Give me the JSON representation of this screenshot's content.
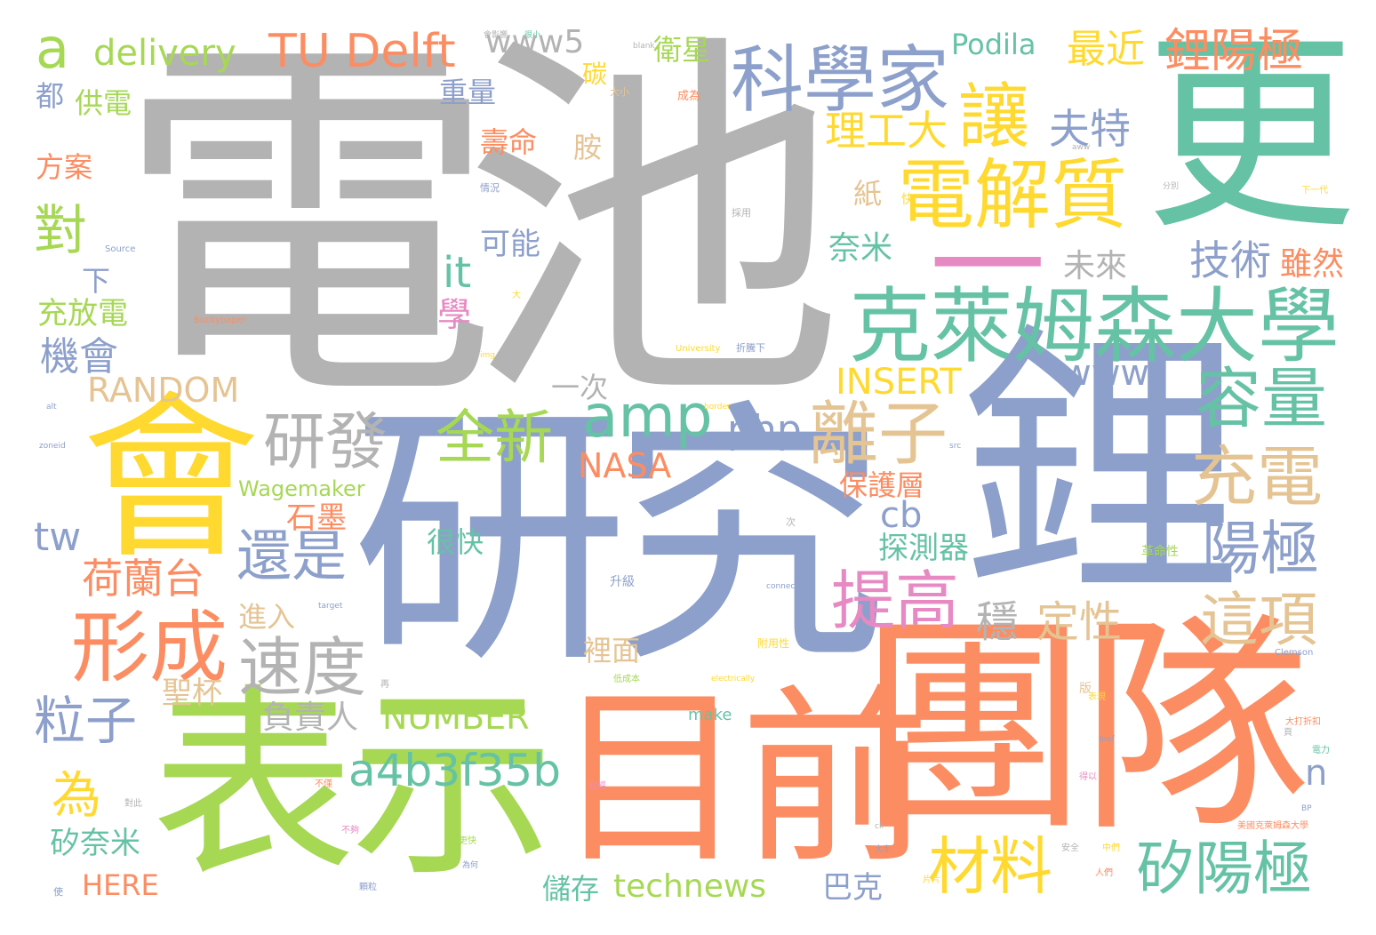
{
  "palette": {
    "gray": "#b3b3b3",
    "blue": "#8da0cb",
    "orange": "#fc8d62",
    "green": "#66c2a5",
    "lime": "#a6d854",
    "yellow": "#ffd92f",
    "tan": "#e5c494",
    "pink": "#e78ac3"
  },
  "words": [
    {
      "text": "電池",
      "color": "gray"
    },
    {
      "text": "更",
      "color": "green"
    },
    {
      "text": "鋰",
      "color": "blue"
    },
    {
      "text": "研究",
      "color": "blue"
    },
    {
      "text": "團隊",
      "color": "orange"
    },
    {
      "text": "目前",
      "color": "orange"
    },
    {
      "text": "表示",
      "color": "lime"
    },
    {
      "text": "會",
      "color": "yellow"
    },
    {
      "text": "克萊姆森大學",
      "color": "green"
    },
    {
      "text": "科學家",
      "color": "blue"
    },
    {
      "text": "電解質",
      "color": "yellow"
    },
    {
      "text": "一",
      "color": "pink"
    },
    {
      "text": "形成",
      "color": "orange"
    },
    {
      "text": "速度",
      "color": "gray"
    },
    {
      "text": "離子",
      "color": "tan"
    },
    {
      "text": "研發",
      "color": "gray"
    },
    {
      "text": "全新",
      "color": "lime"
    },
    {
      "text": "amp",
      "color": "green"
    },
    {
      "text": "讓",
      "color": "yellow"
    },
    {
      "text": "容量",
      "color": "green"
    },
    {
      "text": "充電",
      "color": "tan"
    },
    {
      "text": "陽極",
      "color": "blue"
    },
    {
      "text": "這項",
      "color": "tan"
    },
    {
      "text": "矽陽極",
      "color": "green"
    },
    {
      "text": "材料",
      "color": "yellow"
    },
    {
      "text": "提高",
      "color": "pink"
    },
    {
      "text": "TU Delft",
      "color": "orange"
    },
    {
      "text": "delivery",
      "color": "lime"
    },
    {
      "text": "a",
      "color": "lime"
    },
    {
      "text": "www5",
      "color": "gray"
    },
    {
      "text": "Podila",
      "color": "green"
    },
    {
      "text": "最近",
      "color": "yellow"
    },
    {
      "text": "鋰陽極",
      "color": "orange"
    },
    {
      "text": "衛星",
      "color": "lime"
    },
    {
      "text": "重量",
      "color": "blue"
    },
    {
      "text": "碳",
      "color": "yellow"
    },
    {
      "text": "壽命",
      "color": "orange"
    },
    {
      "text": "胺",
      "color": "tan"
    },
    {
      "text": "理工大",
      "color": "yellow"
    },
    {
      "text": "夫特",
      "color": "blue"
    },
    {
      "text": "對",
      "color": "lime"
    },
    {
      "text": "都",
      "color": "blue"
    },
    {
      "text": "供電",
      "color": "lime"
    },
    {
      "text": "方案",
      "color": "orange"
    },
    {
      "text": "下",
      "color": "blue"
    },
    {
      "text": "充放電",
      "color": "lime"
    },
    {
      "text": "機會",
      "color": "blue"
    },
    {
      "text": "RANDOM",
      "color": "tan"
    },
    {
      "text": "it",
      "color": "green"
    },
    {
      "text": "學",
      "color": "pink"
    },
    {
      "text": "可能",
      "color": "blue"
    },
    {
      "text": "紙",
      "color": "tan"
    },
    {
      "text": "奈米",
      "color": "green"
    },
    {
      "text": "未來",
      "color": "gray"
    },
    {
      "text": "技術",
      "color": "blue"
    },
    {
      "text": "雖然",
      "color": "orange"
    },
    {
      "text": "INSERT",
      "color": "yellow"
    },
    {
      "text": "www",
      "color": "blue"
    },
    {
      "text": "一次",
      "color": "gray"
    },
    {
      "text": "php",
      "color": "blue"
    },
    {
      "text": "NASA",
      "color": "orange"
    },
    {
      "text": "Wagemaker",
      "color": "lime"
    },
    {
      "text": "保護層",
      "color": "orange"
    },
    {
      "text": "石墨",
      "color": "orange"
    },
    {
      "text": "cb",
      "color": "blue"
    },
    {
      "text": "探測器",
      "color": "green"
    },
    {
      "text": "還是",
      "color": "blue"
    },
    {
      "text": "tw",
      "color": "blue"
    },
    {
      "text": "荷蘭台",
      "color": "orange"
    },
    {
      "text": "很快",
      "color": "green"
    },
    {
      "text": "穩",
      "color": "gray"
    },
    {
      "text": "定性",
      "color": "tan"
    },
    {
      "text": "進入",
      "color": "tan"
    },
    {
      "text": "裡面",
      "color": "tan"
    },
    {
      "text": "粒子",
      "color": "blue"
    },
    {
      "text": "聖杯",
      "color": "tan"
    },
    {
      "text": "負責人",
      "color": "gray"
    },
    {
      "text": "NUMBER",
      "color": "lime"
    },
    {
      "text": "為",
      "color": "yellow"
    },
    {
      "text": "a4b3f35b",
      "color": "green"
    },
    {
      "text": "n",
      "color": "blue"
    },
    {
      "text": "矽奈米",
      "color": "green"
    },
    {
      "text": "HERE",
      "color": "orange"
    },
    {
      "text": "儲存",
      "color": "green"
    },
    {
      "text": "technews",
      "color": "lime"
    },
    {
      "text": "巴克",
      "color": "blue"
    },
    {
      "text": "make",
      "color": "green"
    },
    {
      "text": "大小",
      "color": "tan"
    },
    {
      "text": "成為",
      "color": "orange"
    },
    {
      "text": "情況",
      "color": "blue"
    },
    {
      "text": "採用",
      "color": "gray"
    },
    {
      "text": "快",
      "color": "yellow"
    },
    {
      "text": "Source",
      "color": "blue"
    },
    {
      "text": "Buckypaper",
      "color": "orange"
    },
    {
      "text": "University",
      "color": "yellow"
    },
    {
      "text": "折騰下",
      "color": "blue"
    },
    {
      "text": "Clemson",
      "color": "blue"
    },
    {
      "text": "electrically",
      "color": "yellow"
    },
    {
      "text": "connected",
      "color": "blue"
    },
    {
      "text": "blank",
      "color": "gray"
    },
    {
      "text": "img",
      "color": "yellow"
    },
    {
      "text": "border",
      "color": "yellow"
    },
    {
      "text": "src",
      "color": "blue"
    },
    {
      "text": "href",
      "color": "blue"
    },
    {
      "text": "target",
      "color": "blue"
    },
    {
      "text": "zoneid",
      "color": "blue"
    },
    {
      "text": "alt",
      "color": "blue"
    },
    {
      "text": "ck",
      "color": "gray"
    },
    {
      "text": "BP",
      "color": "blue"
    },
    {
      "text": "aww",
      "color": "gray"
    },
    {
      "text": "升級",
      "color": "blue"
    },
    {
      "text": "革命性",
      "color": "lime"
    },
    {
      "text": "附用性",
      "color": "yellow"
    },
    {
      "text": "美國克萊姆森大學",
      "color": "orange"
    },
    {
      "text": "人們",
      "color": "orange"
    },
    {
      "text": "大打折扣",
      "color": "orange"
    },
    {
      "text": "下一代",
      "color": "yellow"
    },
    {
      "text": "分別",
      "color": "gray"
    },
    {
      "text": "電力",
      "color": "green"
    },
    {
      "text": "片片",
      "color": "yellow"
    },
    {
      "text": "太赤",
      "color": "blue"
    },
    {
      "text": "很小",
      "color": "green"
    },
    {
      "text": "不夠",
      "color": "pink"
    },
    {
      "text": "表現",
      "color": "yellow"
    },
    {
      "text": "大",
      "color": "yellow"
    },
    {
      "text": "版",
      "color": "tan"
    },
    {
      "text": "再",
      "color": "gray"
    },
    {
      "text": "次",
      "color": "gray"
    },
    {
      "text": "更快",
      "color": "lime"
    },
    {
      "text": "為何",
      "color": "blue"
    },
    {
      "text": "已經",
      "color": "pink"
    },
    {
      "text": "對此",
      "color": "gray"
    },
    {
      "text": "不僅",
      "color": "orange"
    },
    {
      "text": "安全",
      "color": "gray"
    },
    {
      "text": "中們",
      "color": "yellow"
    },
    {
      "text": "使",
      "color": "blue"
    },
    {
      "text": "得以",
      "color": "pink"
    },
    {
      "text": "顆粒",
      "color": "blue"
    },
    {
      "text": "低成本",
      "color": "lime"
    },
    {
      "text": "頁",
      "color": "gray"
    },
    {
      "text": "以",
      "color": "blue"
    },
    {
      "text": "會影響",
      "color": "gray"
    }
  ]
}
